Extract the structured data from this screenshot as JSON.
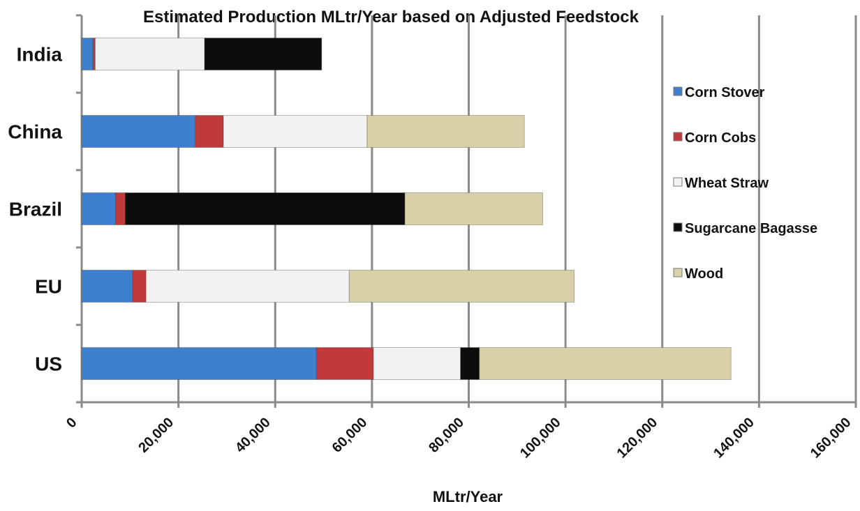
{
  "chart_data": {
    "type": "bar",
    "orientation": "horizontal",
    "stacked": true,
    "title": "Estimated Production MLtr/Year based on Adjusted Feedstock",
    "xlabel": "MLtr/Year",
    "ylabel": "",
    "xlim": [
      0,
      160000
    ],
    "grid": true,
    "legend_position": "right",
    "categories": [
      "US",
      "EU",
      "Brazil",
      "China",
      "India"
    ],
    "tick_labels": [
      "0",
      "20,000",
      "40,000",
      "60,000",
      "80,000",
      "100,000",
      "120,000",
      "140,000",
      "160,000"
    ],
    "tick_values": [
      0,
      20000,
      40000,
      60000,
      80000,
      100000,
      120000,
      140000,
      160000
    ],
    "series": [
      {
        "name": "Corn Stover",
        "color": "#3F7FD0",
        "values": [
          48500,
          10500,
          7000,
          23500,
          2300
        ]
      },
      {
        "name": "Corn Cobs",
        "color": "#C0393B",
        "values": [
          11800,
          2800,
          2000,
          5800,
          500
        ]
      },
      {
        "name": "Wheat Straw",
        "color": "#F2F2F2",
        "values": [
          18000,
          42000,
          0,
          29700,
          22600
        ]
      },
      {
        "name": "Sugarcane Bagasse",
        "color": "#0D0D0D",
        "values": [
          3900,
          0,
          57800,
          0,
          24200
        ]
      },
      {
        "name": "Wood",
        "color": "#D8D0A6",
        "values": [
          52000,
          46500,
          28500,
          32500,
          0
        ]
      }
    ]
  }
}
